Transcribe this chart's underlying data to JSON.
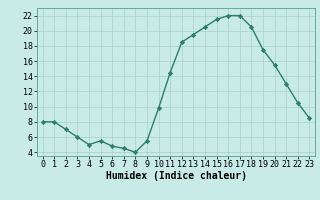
{
  "x": [
    0,
    1,
    2,
    3,
    4,
    5,
    6,
    7,
    8,
    9,
    10,
    11,
    12,
    13,
    14,
    15,
    16,
    17,
    18,
    19,
    20,
    21,
    22,
    23
  ],
  "y": [
    8,
    8,
    7,
    6,
    5,
    5.5,
    4.8,
    4.5,
    4,
    5.5,
    9.8,
    14.5,
    18.5,
    19.5,
    20.5,
    21.5,
    22,
    22,
    20.5,
    17.5,
    15.5,
    13,
    10.5,
    8.5
  ],
  "line_color": "#2e7d6e",
  "marker": "D",
  "markersize": 2.2,
  "linewidth": 1.0,
  "bg_color": "#c8ebe8",
  "grid_color": "#aacfcc",
  "xlabel": "Humidex (Indice chaleur)",
  "ylabel": "",
  "xlim": [
    -0.5,
    23.5
  ],
  "ylim": [
    3.5,
    23
  ],
  "yticks": [
    4,
    6,
    8,
    10,
    12,
    14,
    16,
    18,
    20,
    22
  ],
  "xticks": [
    0,
    1,
    2,
    3,
    4,
    5,
    6,
    7,
    8,
    9,
    10,
    11,
    12,
    13,
    14,
    15,
    16,
    17,
    18,
    19,
    20,
    21,
    22,
    23
  ],
  "xlabel_fontsize": 7.0,
  "tick_fontsize": 6.0
}
